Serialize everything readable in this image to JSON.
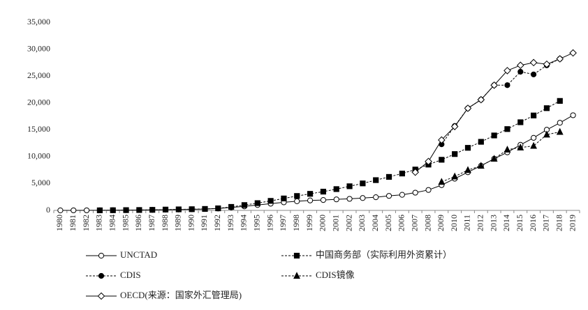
{
  "chart_data": {
    "type": "line",
    "categories": [
      "1980",
      "1981",
      "1982",
      "1983",
      "1984",
      "1985",
      "1986",
      "1987",
      "1988",
      "1989",
      "1990",
      "1991",
      "1992",
      "1993",
      "1994",
      "1995",
      "1996",
      "1997",
      "1998",
      "1999",
      "2000",
      "2001",
      "2002",
      "2003",
      "2004",
      "2005",
      "2006",
      "2007",
      "2008",
      "2009",
      "2010",
      "2011",
      "2012",
      "2013",
      "2014",
      "2015",
      "2016",
      "2017",
      "2018",
      "2019"
    ],
    "ylim": [
      0,
      35000
    ],
    "yticks": [
      0,
      {
        "value": 5000,
        "label": "5,000"
      },
      {
        "value": 10000,
        "label": "10,000"
      },
      {
        "value": 15000,
        "label": "15,000"
      },
      {
        "value": 20000,
        "label": "20,000"
      },
      {
        "value": 25000,
        "label": "25,000"
      },
      {
        "value": 30000,
        "label": "30,000"
      },
      {
        "value": 35000,
        "label": "35,000"
      }
    ],
    "grid": false,
    "series": [
      {
        "name": "UNCTAD",
        "color": "#000000",
        "dash": "solid",
        "marker": "circle-open",
        "values": [
          0,
          5,
          10,
          20,
          30,
          50,
          70,
          100,
          130,
          170,
          200,
          250,
          350,
          550,
          750,
          1000,
          1250,
          1500,
          1700,
          1850,
          1930,
          2050,
          2150,
          2300,
          2450,
          2700,
          2900,
          3300,
          3800,
          4700,
          5900,
          7100,
          8300,
          9600,
          10800,
          12200,
          13500,
          15000,
          16300,
          17700
        ]
      },
      {
        "name": "中国商务部（实际利用外资累计）",
        "color": "#000000",
        "dash": "dashed",
        "marker": "square",
        "values": [
          null,
          null,
          null,
          10,
          30,
          50,
          70,
          100,
          150,
          190,
          220,
          270,
          380,
          650,
          990,
          1350,
          1770,
          2220,
          2680,
          3080,
          3490,
          3960,
          4490,
          5020,
          5630,
          6230,
          6860,
          7600,
          8520,
          9420,
          10480,
          11640,
          12760,
          13940,
          15130,
          16400,
          17660,
          19020,
          20370,
          null
        ]
      },
      {
        "name": "CDIS",
        "color": "#000000",
        "dash": "dashed",
        "marker": "circle",
        "values": [
          null,
          null,
          null,
          null,
          null,
          null,
          null,
          null,
          null,
          null,
          null,
          null,
          null,
          null,
          null,
          null,
          null,
          null,
          null,
          null,
          null,
          null,
          null,
          null,
          null,
          null,
          null,
          null,
          null,
          12300,
          15700,
          19000,
          20600,
          23300,
          23300,
          25800,
          25300,
          27000,
          28200,
          null
        ]
      },
      {
        "name": "CDIS镜像",
        "color": "#000000",
        "dash": "dashed",
        "marker": "triangle",
        "values": [
          null,
          null,
          null,
          null,
          null,
          null,
          null,
          null,
          null,
          null,
          null,
          null,
          null,
          null,
          null,
          null,
          null,
          null,
          null,
          null,
          null,
          null,
          null,
          null,
          null,
          null,
          null,
          null,
          null,
          5300,
          6300,
          7500,
          8300,
          9600,
          11300,
          11700,
          12000,
          14100,
          14600,
          null
        ]
      },
      {
        "name": "OECD(来源：国家外汇管理局)",
        "color": "#000000",
        "dash": "solid",
        "marker": "diamond-open",
        "values": [
          null,
          null,
          null,
          null,
          null,
          null,
          null,
          null,
          null,
          null,
          null,
          null,
          null,
          null,
          null,
          null,
          null,
          null,
          null,
          null,
          null,
          null,
          null,
          null,
          null,
          null,
          null,
          7100,
          9100,
          13100,
          15600,
          19000,
          20600,
          23300,
          26000,
          27000,
          27500,
          27200,
          28200,
          29300
        ]
      }
    ]
  }
}
